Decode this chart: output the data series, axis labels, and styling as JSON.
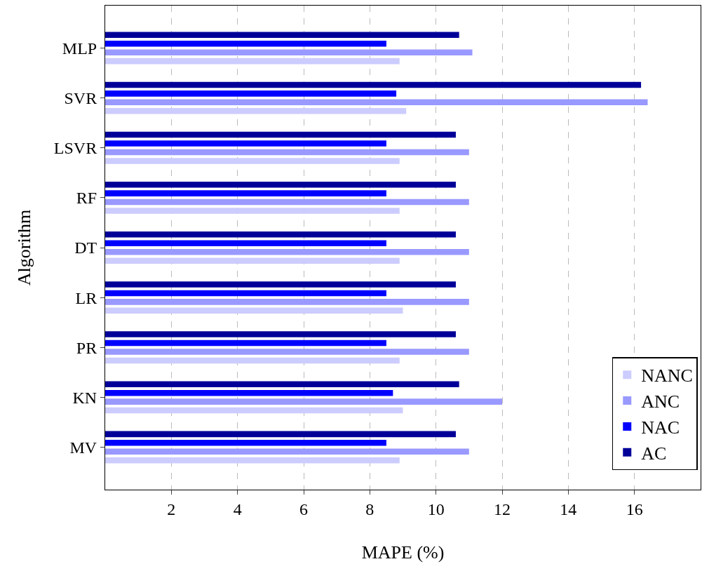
{
  "chart_data": {
    "type": "bar",
    "orientation": "horizontal",
    "xlabel": "MAPE (%)",
    "ylabel": "Algorithm",
    "categories": [
      "MLP",
      "SVR",
      "LSVR",
      "RF",
      "DT",
      "LR",
      "PR",
      "KN",
      "MV"
    ],
    "series": [
      {
        "name": "NANC",
        "color": "#ccccff",
        "values": [
          8.9,
          9.1,
          8.9,
          8.9,
          8.9,
          9.0,
          8.9,
          9.0,
          8.9
        ]
      },
      {
        "name": "ANC",
        "color": "#9999ff",
        "values": [
          11.1,
          16.4,
          11.0,
          11.0,
          11.0,
          11.0,
          11.0,
          12.0,
          11.0
        ]
      },
      {
        "name": "NAC",
        "color": "#0000ff",
        "values": [
          8.5,
          8.8,
          8.5,
          8.5,
          8.5,
          8.5,
          8.5,
          8.7,
          8.5
        ]
      },
      {
        "name": "AC",
        "color": "#000099",
        "values": [
          10.7,
          16.2,
          10.6,
          10.6,
          10.6,
          10.6,
          10.6,
          10.7,
          10.6
        ]
      }
    ],
    "xlim": [
      0,
      18
    ],
    "xticks": [
      2,
      4,
      6,
      8,
      10,
      12,
      14,
      16
    ],
    "grid": "x",
    "legend": "bottom right"
  }
}
